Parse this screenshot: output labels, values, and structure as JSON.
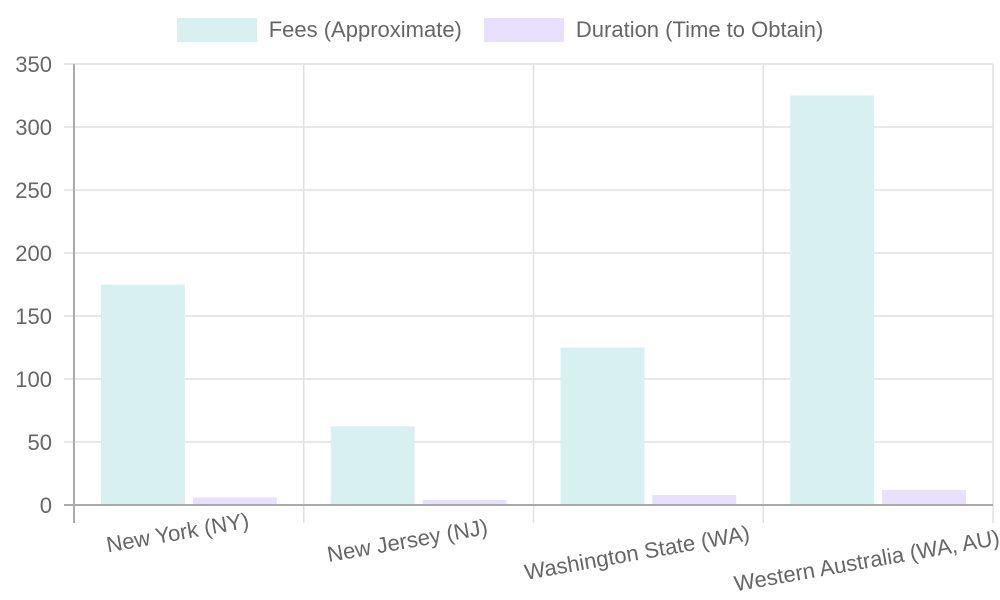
{
  "chart_data": {
    "type": "bar",
    "title": "",
    "xlabel": "",
    "ylabel": "",
    "categories": [
      "New York (NY)",
      "New Jersey (NJ)",
      "Washington State (WA)",
      "Western Australia (WA, AU)"
    ],
    "series": [
      {
        "name": "Fees (Approximate)",
        "values": [
          175,
          62.5,
          125,
          325
        ],
        "color": "#d8f0f0"
      },
      {
        "name": "Duration (Time to Obtain)",
        "values": [
          6,
          4,
          8,
          12
        ],
        "color": "#e8e0fc"
      }
    ],
    "ylim": [
      0,
      350
    ],
    "yticks": [
      0,
      50,
      100,
      150,
      200,
      250,
      300,
      350
    ],
    "grid": true,
    "legend_position": "top"
  },
  "legend": {
    "items": [
      {
        "label": "Fees (Approximate)",
        "color": "#d8f0f0"
      },
      {
        "label": "Duration (Time to Obtain)",
        "color": "#e8e0fc"
      }
    ]
  }
}
